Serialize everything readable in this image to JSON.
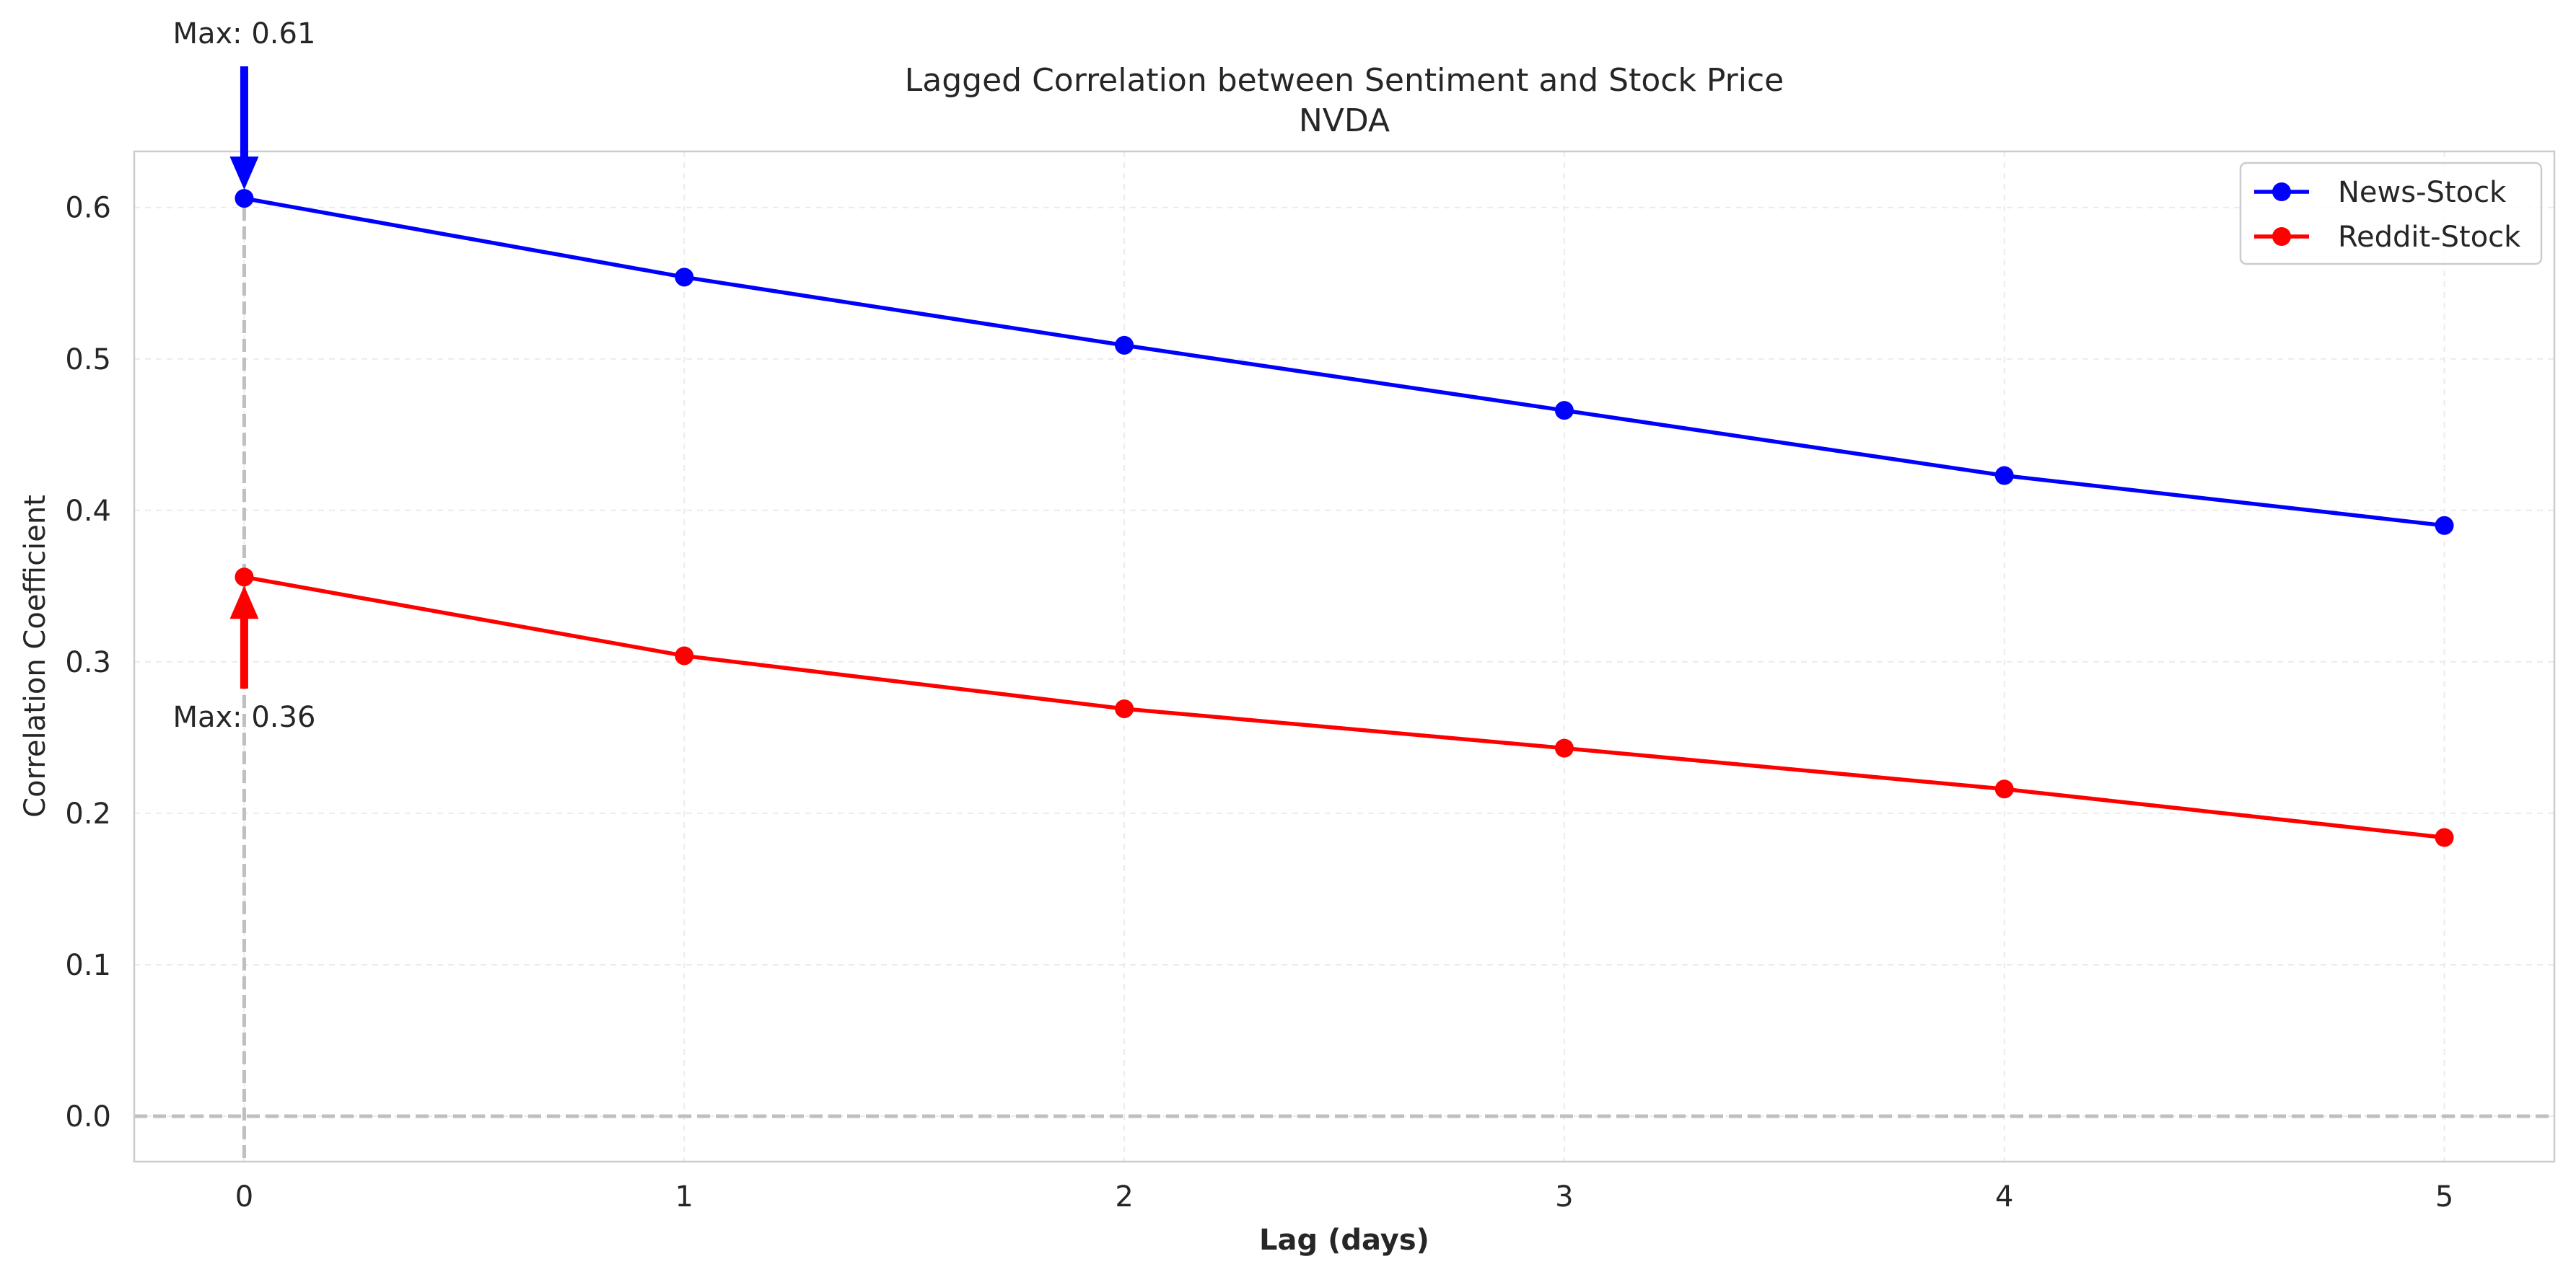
{
  "chart_data": {
    "type": "line",
    "title": "Lagged Correlation between Sentiment and Stock Price",
    "subtitle": "NVDA",
    "xlabel": "Lag (days)",
    "ylabel": "Correlation Coefficient",
    "x": [
      0,
      1,
      2,
      3,
      4,
      5
    ],
    "xlim": [
      -0.25,
      5.25
    ],
    "ylim": [
      -0.03,
      0.637
    ],
    "xticks": [
      0,
      1,
      2,
      3,
      4,
      5
    ],
    "yticks": [
      0.0,
      0.1,
      0.2,
      0.3,
      0.4,
      0.5,
      0.6
    ],
    "ytick_labels": [
      "0.0",
      "0.1",
      "0.2",
      "0.3",
      "0.4",
      "0.5",
      "0.6"
    ],
    "grid": true,
    "legend_position": "top-right",
    "series": [
      {
        "name": "News-Stock",
        "color": "#0000ff",
        "values": [
          0.606,
          0.554,
          0.509,
          0.466,
          0.423,
          0.39
        ]
      },
      {
        "name": "Reddit-Stock",
        "color": "#ff0000",
        "values": [
          0.356,
          0.304,
          0.269,
          0.243,
          0.216,
          0.184
        ]
      }
    ],
    "reference_lines": [
      {
        "axis": "y",
        "value": 0.0,
        "style": "dashed",
        "color": "#bfbfbf"
      },
      {
        "axis": "x",
        "value": 0,
        "style": "dashed",
        "color": "#bfbfbf"
      }
    ],
    "annotations": [
      {
        "text": "Max: 0.61",
        "series": "News-Stock",
        "x": 0,
        "y": 0.606,
        "arrow_color": "#0000ff",
        "placement": "above"
      },
      {
        "text": "Max: 0.36",
        "series": "Reddit-Stock",
        "x": 0,
        "y": 0.356,
        "arrow_color": "#ff0000",
        "placement": "below"
      }
    ]
  }
}
